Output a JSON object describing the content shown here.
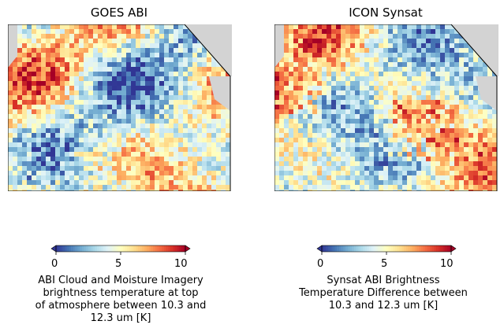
{
  "panels": [
    {
      "title": "GOES ABI"
    },
    {
      "title": "ICON Synsat"
    }
  ],
  "colorbars": [
    {
      "label": "ABI Cloud and Moisture Imagery\nbrightness temperature at top\nof atmosphere between 10.3 and\n12.3 um [K]",
      "ticks": [
        "0",
        "5",
        "10"
      ]
    },
    {
      "label": "Synsat ABI Brightness\nTemperature Difference between\n10.3 and 12.3 um [K]",
      "ticks": [
        "0",
        "5",
        "10"
      ]
    }
  ],
  "chart_data": {
    "type": "heatmap",
    "colormap": "RdYlBu_r",
    "vmin": 0,
    "vmax": 10,
    "extend": "both",
    "land_mask_color": "#d3d3d3",
    "coastline_color": "#ffffff"
  }
}
